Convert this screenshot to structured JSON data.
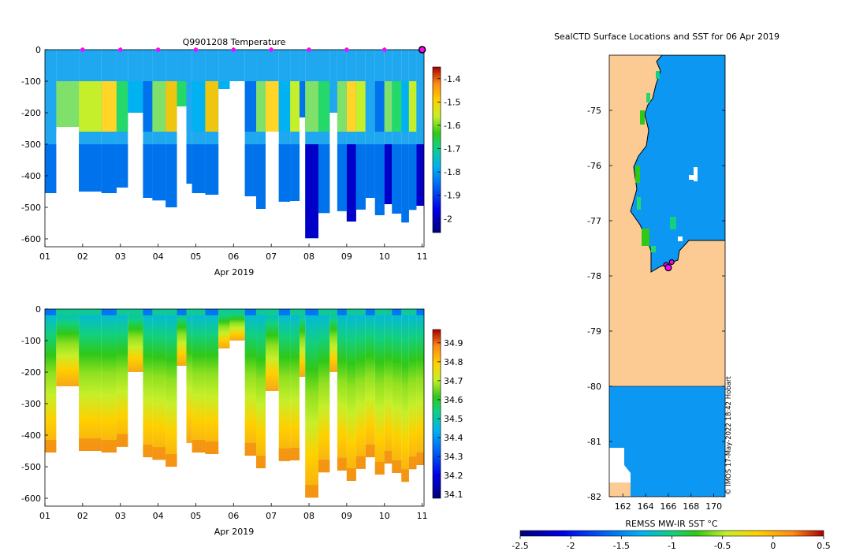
{
  "colors": {
    "land": "#fccb94",
    "sst_fill": "#0c97f2",
    "marker_magenta": "#ff00ff",
    "coast": "#000000"
  },
  "chart_data": [
    {
      "id": "temperature",
      "type": "heatmap",
      "title": "Q9901208  Temperature",
      "xlabel": "Apr 2019",
      "ylabel": "",
      "x_ticks": [
        "01",
        "02",
        "03",
        "04",
        "05",
        "06",
        "07",
        "08",
        "09",
        "10",
        "11"
      ],
      "xlim": [
        1,
        11.05
      ],
      "ylim": [
        -625,
        0
      ],
      "y_ticks": [
        0,
        -100,
        -200,
        -300,
        -400,
        -500,
        -600
      ],
      "colorbar": {
        "min": -2.06,
        "max": -1.35,
        "ticks": [
          -1.4,
          -1.5,
          -1.6,
          -1.7,
          -1.8,
          -1.9,
          -2
        ],
        "tick_labels": [
          "-1.4",
          "-1.5",
          "-1.6",
          "-1.7",
          "-1.8",
          "-1.9",
          "-2"
        ]
      },
      "profile_days": [
        1.0,
        1.3,
        1.9,
        2.5,
        2.9,
        3.2,
        3.6,
        3.85,
        4.2,
        4.5,
        4.75,
        4.9,
        5.25,
        5.6,
        5.9,
        6.3,
        6.6,
        6.85,
        7.2,
        7.5,
        7.75,
        7.9,
        8.25,
        8.55,
        8.75,
        9.0,
        9.25,
        9.5,
        9.75,
        10.0,
        10.2,
        10.45,
        10.65,
        10.85,
        11.05
      ],
      "profile_max_depth": [
        455,
        245,
        450,
        455,
        437,
        200,
        470,
        478,
        500,
        180,
        425,
        455,
        460,
        125,
        100,
        465,
        505,
        260,
        482,
        480,
        215,
        598,
        518,
        200,
        512,
        545,
        507,
        470,
        525,
        490,
        520,
        548,
        508,
        495
      ],
      "stripe_colors": [
        "#1fa8f0",
        "#7fe06a",
        "#c5ef2a",
        "#ffd528",
        "#24d86a",
        "#00b2f1",
        "#0072ec",
        "#7fe06a",
        "#efc60f",
        "#24d86a",
        "#1fa8f0",
        "#00b2f1",
        "#efc60f",
        "#00b2f1",
        "#ff8a12",
        "#0072ec",
        "#7fe06a",
        "#ffd528",
        "#00b2f1",
        "#c5ef2a",
        "#0072ec",
        "#7fe06a",
        "#24d86a",
        "#1fa8f0",
        "#7fe06a",
        "#ffd528",
        "#c5ef2a",
        "#1fa8f0",
        "#0072ec",
        "#7fe06a",
        "#24d86a",
        "#00b2f1",
        "#c5ef2a",
        "#1fa8f0"
      ],
      "surface_markers": [
        {
          "day": 2,
          "depth": 0,
          "style": "magenta-star"
        },
        {
          "day": 3,
          "depth": 0,
          "style": "magenta-star"
        },
        {
          "day": 4,
          "depth": 0,
          "style": "magenta-star"
        },
        {
          "day": 5,
          "depth": 0,
          "style": "magenta-star"
        },
        {
          "day": 6,
          "depth": 0,
          "style": "magenta-star"
        },
        {
          "day": 7,
          "depth": 0,
          "style": "magenta-star"
        },
        {
          "day": 8,
          "depth": 0,
          "style": "magenta-star"
        },
        {
          "day": 9,
          "depth": 0,
          "style": "magenta-star"
        },
        {
          "day": 10,
          "depth": 0,
          "style": "magenta-star"
        },
        {
          "day": 11,
          "depth": 0,
          "style": "magenta-circle"
        }
      ]
    },
    {
      "id": "salinity",
      "type": "heatmap",
      "title": "",
      "xlabel": "Apr 2019",
      "ylabel": "",
      "x_ticks": [
        "01",
        "02",
        "03",
        "04",
        "05",
        "06",
        "07",
        "08",
        "09",
        "10",
        "11"
      ],
      "xlim": [
        1,
        11.05
      ],
      "ylim": [
        -625,
        0
      ],
      "y_ticks": [
        0,
        -100,
        -200,
        -300,
        -400,
        -500,
        -600
      ],
      "colorbar": {
        "min": 34.08,
        "max": 34.97,
        "ticks": [
          34.9,
          34.8,
          34.7,
          34.6,
          34.5,
          34.4,
          34.3,
          34.2,
          34.1
        ],
        "tick_labels": [
          "34.9",
          "34.8",
          "34.7",
          "34.6",
          "34.5",
          "34.4",
          "34.3",
          "34.2",
          "34.1"
        ]
      },
      "profile_days": [
        1.0,
        1.3,
        1.9,
        2.5,
        2.9,
        3.2,
        3.6,
        3.85,
        4.2,
        4.5,
        4.75,
        4.9,
        5.25,
        5.6,
        5.9,
        6.3,
        6.6,
        6.85,
        7.2,
        7.5,
        7.75,
        7.9,
        8.25,
        8.55,
        8.75,
        9.0,
        9.25,
        9.5,
        9.75,
        10.0,
        10.2,
        10.45,
        10.65,
        10.85,
        11.05
      ],
      "profile_max_depth": [
        455,
        245,
        450,
        455,
        437,
        200,
        470,
        478,
        500,
        180,
        425,
        455,
        460,
        125,
        100,
        465,
        505,
        260,
        482,
        480,
        215,
        598,
        518,
        200,
        512,
        545,
        507,
        470,
        525,
        490,
        520,
        548,
        508,
        495
      ]
    },
    {
      "id": "map",
      "type": "heatmap",
      "title": "SealCTD Surface Locations and SST for 06 Apr 2019",
      "xlabel": "REMSS MW-IR SST °C",
      "ylabel": "",
      "x_ticks": [
        "162",
        "164",
        "166",
        "168",
        "170"
      ],
      "x_tick_values": [
        162,
        164,
        166,
        168,
        170
      ],
      "y_ticks": [
        "-75",
        "-76",
        "-77",
        "-78",
        "-79",
        "-80",
        "-81",
        "-82"
      ],
      "y_tick_values": [
        -75,
        -76,
        -77,
        -78,
        -79,
        -80,
        -81,
        -82
      ],
      "xlim": [
        160.8,
        171.0
      ],
      "ylim": [
        -82.0,
        -74.0
      ],
      "colorbar": {
        "min": -2.5,
        "max": 0.5,
        "ticks": [
          -2.5,
          -2,
          -1.5,
          -1,
          -0.5,
          0,
          0.5
        ],
        "tick_labels": [
          "-2.5",
          "-2",
          "-1.5",
          "-1",
          "-0.5",
          "0",
          "0.5"
        ]
      },
      "ice_shelf_edge_lat": -80.0,
      "seal_positions": [
        {
          "lon": 165.8,
          "lat": -77.8
        },
        {
          "lon": 166.3,
          "lat": -77.75
        },
        {
          "lon": 166.0,
          "lat": -77.85
        }
      ],
      "credit": "© IMOS 17-May-2022 18:42 Hobart"
    }
  ]
}
